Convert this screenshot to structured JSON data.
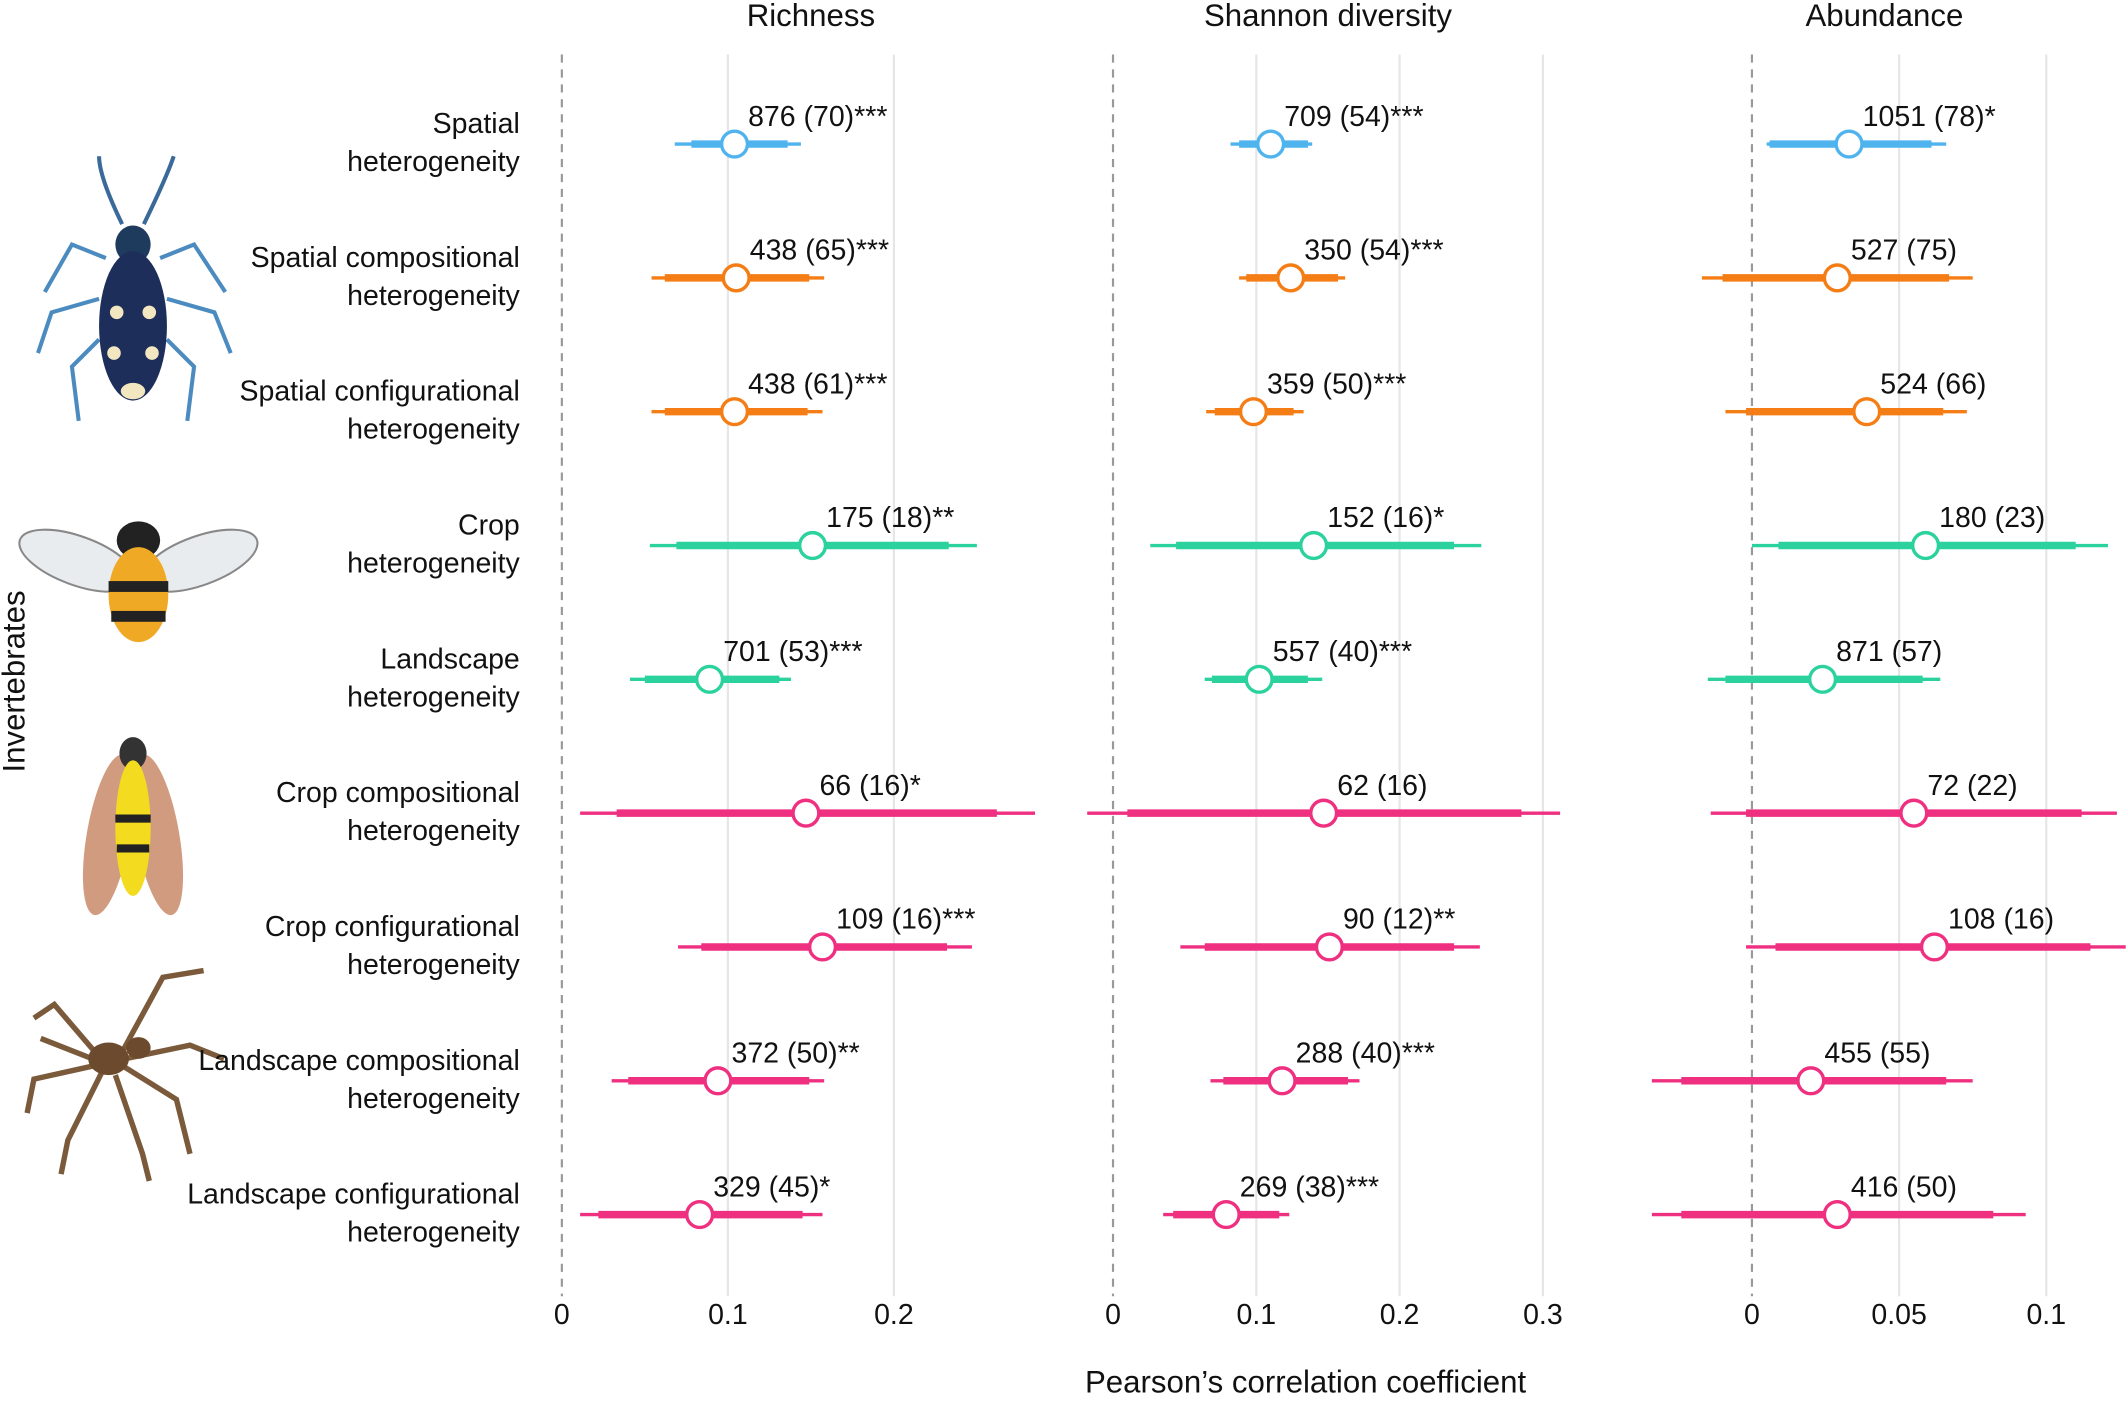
{
  "chart_data": {
    "type": "forest",
    "ylabel": "Invertebrates",
    "xlabel": "Pearson’s correlation coefficient",
    "grid": true,
    "categories": [
      [
        "Spatial",
        "heterogeneity"
      ],
      [
        "Spatial compositional",
        "heterogeneity"
      ],
      [
        "Spatial configurational",
        "heterogeneity"
      ],
      [
        "Crop",
        "heterogeneity"
      ],
      [
        "Landscape",
        "heterogeneity"
      ],
      [
        "Crop compositional",
        "heterogeneity"
      ],
      [
        "Crop configurational",
        "heterogeneity"
      ],
      [
        "Landscape compositional",
        "heterogeneity"
      ],
      [
        "Landscape configurational",
        "heterogeneity"
      ]
    ],
    "colors": [
      "#4fb4ee",
      "#f57d15",
      "#f57d15",
      "#2cd29d",
      "#2cd29d",
      "#ef2f80",
      "#ef2f80",
      "#ef2f80",
      "#ef2f80"
    ],
    "panels": [
      {
        "title": "Richness",
        "xlim": [
          0,
          0.3
        ],
        "xticks": [
          0,
          0.1,
          0.2
        ],
        "values": [
          0.104,
          0.105,
          0.104,
          0.151,
          0.089,
          0.147,
          0.157,
          0.094,
          0.083
        ],
        "inner_low": [
          0.078,
          0.062,
          0.062,
          0.069,
          0.05,
          0.033,
          0.084,
          0.04,
          0.022
        ],
        "inner_high": [
          0.136,
          0.149,
          0.148,
          0.233,
          0.131,
          0.262,
          0.232,
          0.149,
          0.145
        ],
        "outer_low": [
          0.068,
          0.054,
          0.054,
          0.053,
          0.041,
          0.011,
          0.07,
          0.03,
          0.011
        ],
        "outer_high": [
          0.144,
          0.158,
          0.157,
          0.25,
          0.138,
          0.285,
          0.247,
          0.158,
          0.157
        ],
        "value_labels": [
          "876 (70)***",
          "438 (65)***",
          "438 (61)***",
          "175 (18)**",
          "701 (53)***",
          "66 (16)*",
          "109 (16)***",
          "372 (50)**",
          "329 (45)*"
        ]
      },
      {
        "title": "Shannon diversity",
        "xlim": [
          -0.02,
          0.32
        ],
        "xticks": [
          0,
          0.1,
          0.2,
          0.3
        ],
        "values": [
          0.11,
          0.124,
          0.098,
          0.14,
          0.102,
          0.147,
          0.151,
          0.118,
          0.079
        ],
        "inner_low": [
          0.088,
          0.093,
          0.071,
          0.044,
          0.069,
          0.01,
          0.064,
          0.077,
          0.042
        ],
        "inner_high": [
          0.136,
          0.157,
          0.126,
          0.238,
          0.136,
          0.285,
          0.238,
          0.164,
          0.116
        ],
        "outer_low": [
          0.082,
          0.088,
          0.065,
          0.026,
          0.064,
          -0.018,
          0.047,
          0.068,
          0.035
        ],
        "outer_high": [
          0.139,
          0.162,
          0.133,
          0.257,
          0.146,
          0.312,
          0.256,
          0.172,
          0.123
        ],
        "value_labels": [
          "709 (54)***",
          "350 (54)***",
          "359 (50)***",
          "152 (16)*",
          "557 (40)***",
          "62 (16)",
          "90 (12)**",
          "288 (40)***",
          "269 (38)***"
        ]
      },
      {
        "title": "Abundance",
        "xlim": [
          -0.035,
          0.125
        ],
        "xticks": [
          0,
          0.05,
          0.1
        ],
        "values": [
          0.033,
          0.029,
          0.039,
          0.059,
          0.024,
          0.055,
          0.062,
          0.02,
          0.029
        ],
        "inner_low": [
          0.006,
          -0.01,
          -0.002,
          0.009,
          -0.009,
          -0.002,
          0.008,
          -0.024,
          -0.024
        ],
        "inner_high": [
          0.061,
          0.067,
          0.065,
          0.11,
          0.058,
          0.112,
          0.115,
          0.066,
          0.082
        ],
        "outer_low": [
          0.005,
          -0.017,
          -0.009,
          0.0,
          -0.015,
          -0.014,
          -0.002,
          -0.034,
          -0.034
        ],
        "outer_high": [
          0.066,
          0.075,
          0.073,
          0.121,
          0.064,
          0.124,
          0.127,
          0.075,
          0.093
        ],
        "value_labels": [
          "1051 (78)*",
          "527 (75)",
          "524 (66)",
          "180 (23)",
          "871 (57)",
          "72 (22)",
          "108 (16)",
          "455 (55)",
          "416 (50)"
        ]
      }
    ]
  }
}
